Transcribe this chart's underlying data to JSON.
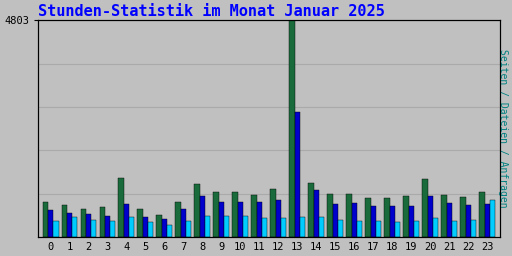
{
  "title": "Stunden-Statistik im Monat Januar 2025",
  "title_color": "#0000FF",
  "background_color": "#C0C0C0",
  "plot_bg_color": "#C0C0C0",
  "ylabel_right": "Seiten / Dateien / Anfragen",
  "ylabel_right_color": "#008080",
  "ymax": 4803,
  "ytick_label": "4803",
  "hours": [
    0,
    1,
    2,
    3,
    4,
    5,
    6,
    7,
    8,
    9,
    10,
    11,
    12,
    13,
    14,
    15,
    16,
    17,
    18,
    19,
    20,
    21,
    22,
    23
  ],
  "seiten": [
    780,
    700,
    620,
    660,
    1300,
    620,
    490,
    780,
    1180,
    990,
    990,
    940,
    1060,
    4803,
    1200,
    950,
    950,
    870,
    870,
    900,
    1280,
    940,
    880,
    1000
  ],
  "dateien": [
    600,
    530,
    500,
    470,
    740,
    450,
    390,
    610,
    900,
    780,
    780,
    770,
    830,
    2760,
    1050,
    740,
    760,
    680,
    680,
    690,
    900,
    750,
    700,
    740
  ],
  "anfragen": [
    350,
    440,
    380,
    365,
    440,
    340,
    265,
    360,
    475,
    455,
    455,
    420,
    420,
    440,
    440,
    380,
    360,
    345,
    325,
    345,
    420,
    360,
    375,
    830
  ],
  "color_seiten": "#1A6B3C",
  "color_dateien": "#0000CC",
  "color_anfragen": "#00CCFF",
  "bar_width": 0.28,
  "grid_color": "#AAAAAA",
  "border_color": "#000000",
  "font_family": "monospace",
  "title_fontsize": 11,
  "tick_fontsize": 7.5
}
